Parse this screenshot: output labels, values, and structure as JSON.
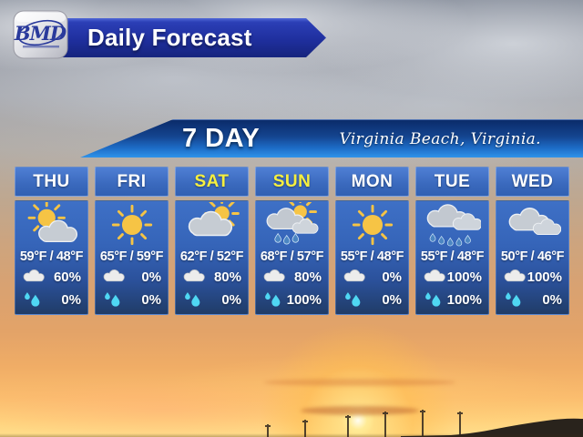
{
  "header": {
    "logo_text": "BMD",
    "banner_title": "Daily Forecast"
  },
  "banner": {
    "title": "7 DAY",
    "location": "Virginia Beach, Virginia."
  },
  "colors": {
    "weekday_label": "#ffffff",
    "weekend_label": "#f5ef3f",
    "card_blue_top": "#3e70c6",
    "card_blue_bottom": "#203c67",
    "top_banner_navy": "#1f2f9e",
    "seven_banner_top": "#0a2a68",
    "seven_banner_bottom": "#2f93ea"
  },
  "cards": [
    {
      "day": "THU",
      "day_color": "#ffffff",
      "icon": "partly-cloudy",
      "temps": "59°F / 48°F",
      "rows": [
        {
          "icon": "rain-cloud",
          "value": "60%"
        },
        {
          "icon": "droplets",
          "value": "0%"
        }
      ]
    },
    {
      "day": "FRI",
      "day_color": "#ffffff",
      "icon": "sunny",
      "temps": "65°F / 59°F",
      "rows": [
        {
          "icon": "rain-cloud",
          "value": "0%"
        },
        {
          "icon": "droplets",
          "value": "0%"
        }
      ]
    },
    {
      "day": "SAT",
      "day_color": "#f5ef3f",
      "icon": "mostly-cloudy",
      "temps": "62°F / 52°F",
      "rows": [
        {
          "icon": "rain-cloud",
          "value": "80%"
        },
        {
          "icon": "droplets",
          "value": "0%"
        }
      ]
    },
    {
      "day": "SUN",
      "day_color": "#f5ef3f",
      "icon": "sun-showers",
      "temps": "68°F / 57°F",
      "rows": [
        {
          "icon": "rain-cloud",
          "value": "80%"
        },
        {
          "icon": "droplets",
          "value": "100%"
        }
      ]
    },
    {
      "day": "MON",
      "day_color": "#ffffff",
      "icon": "sunny",
      "temps": "55°F / 48°F",
      "rows": [
        {
          "icon": "rain-cloud",
          "value": "0%"
        },
        {
          "icon": "droplets",
          "value": "0%"
        }
      ]
    },
    {
      "day": "TUE",
      "day_color": "#ffffff",
      "icon": "rain",
      "temps": "55°F / 48°F",
      "rows": [
        {
          "icon": "rain-cloud",
          "value": "100%"
        },
        {
          "icon": "droplets",
          "value": "100%"
        }
      ]
    },
    {
      "day": "WED",
      "day_color": "#ffffff",
      "icon": "cloudy",
      "temps": "50°F / 46°F",
      "rows": [
        {
          "icon": "rain-cloud",
          "value": "100%"
        },
        {
          "icon": "droplets",
          "value": "0%"
        }
      ]
    }
  ]
}
